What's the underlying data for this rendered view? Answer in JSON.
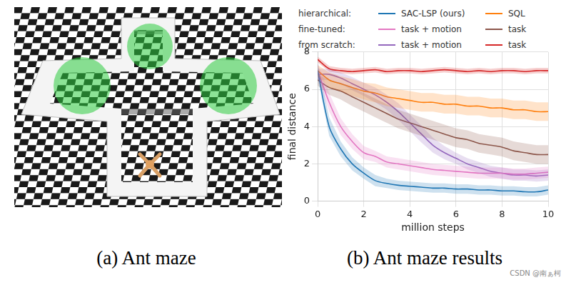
{
  "captions": [
    "(a) Ant maze",
    "(b) Ant maze results"
  ],
  "watermark": "CSDN @南ぁ柯",
  "chart_data": {
    "type": "line",
    "x_label": "million steps",
    "y_label": "final distance",
    "x": [
      0,
      0.5,
      1,
      1.5,
      2,
      2.5,
      3,
      3.5,
      4,
      4.5,
      5,
      5.5,
      6,
      6.5,
      7,
      7.5,
      8,
      8.5,
      9,
      9.5,
      10
    ],
    "xlim": [
      0,
      10
    ],
    "xticks": [
      0,
      2,
      4,
      6,
      8,
      10
    ],
    "ylim": [
      0,
      8
    ],
    "yticks": [
      0,
      2,
      4,
      6,
      8
    ],
    "grid": true,
    "series": [
      {
        "group": "hierarchical:",
        "name": "SAC-LSP (ours)",
        "color": "#1f77b4",
        "values": [
          7.0,
          4.0,
          2.8,
          2.0,
          1.5,
          1.1,
          0.95,
          0.85,
          0.8,
          0.75,
          0.7,
          0.7,
          0.65,
          0.65,
          0.6,
          0.6,
          0.55,
          0.55,
          0.5,
          0.5,
          0.6
        ],
        "error": [
          0.4,
          0.5,
          0.4,
          0.35,
          0.3,
          0.3,
          0.25,
          0.25,
          0.25,
          0.25,
          0.25,
          0.25,
          0.25,
          0.25,
          0.25,
          0.25,
          0.25,
          0.25,
          0.25,
          0.25,
          0.25
        ]
      },
      {
        "group": "hierarchical:",
        "name": "SQL",
        "color": "#ff7f0e",
        "values": [
          7.0,
          6.5,
          6.3,
          6.1,
          5.9,
          5.8,
          5.6,
          5.5,
          5.4,
          5.3,
          5.3,
          5.2,
          5.2,
          5.1,
          5.1,
          5.0,
          5.0,
          4.9,
          4.9,
          4.8,
          4.8
        ],
        "error": [
          0.3,
          0.4,
          0.4,
          0.45,
          0.45,
          0.5,
          0.5,
          0.5,
          0.5,
          0.5,
          0.5,
          0.5,
          0.5,
          0.5,
          0.5,
          0.5,
          0.5,
          0.5,
          0.5,
          0.5,
          0.5
        ]
      },
      {
        "group": "fine-tuned:",
        "name": "task + motion",
        "color": "#e377c2",
        "values": [
          7.0,
          5.3,
          4.0,
          3.2,
          2.6,
          2.4,
          2.1,
          2.0,
          1.9,
          1.8,
          1.7,
          1.65,
          1.6,
          1.55,
          1.5,
          1.5,
          1.5,
          1.45,
          1.45,
          1.5,
          1.55
        ],
        "error": [
          0.4,
          0.5,
          0.45,
          0.4,
          0.35,
          0.3,
          0.3,
          0.3,
          0.3,
          0.3,
          0.3,
          0.3,
          0.3,
          0.3,
          0.3,
          0.3,
          0.3,
          0.3,
          0.3,
          0.3,
          0.3
        ]
      },
      {
        "group": "fine-tuned:",
        "name": "task",
        "color": "#8c564b",
        "values": [
          6.5,
          6.1,
          5.9,
          5.6,
          5.3,
          5.0,
          4.7,
          4.4,
          4.2,
          4.0,
          3.8,
          3.6,
          3.4,
          3.3,
          3.1,
          3.0,
          2.9,
          2.7,
          2.6,
          2.5,
          2.5
        ],
        "error": [
          0.3,
          0.4,
          0.45,
          0.5,
          0.5,
          0.5,
          0.5,
          0.5,
          0.5,
          0.5,
          0.5,
          0.5,
          0.5,
          0.5,
          0.5,
          0.5,
          0.5,
          0.5,
          0.5,
          0.5,
          0.5
        ]
      },
      {
        "group": "from scratch:",
        "name": "task + motion",
        "color": "#9467bd",
        "values": [
          6.8,
          6.8,
          6.6,
          6.3,
          6.0,
          5.7,
          5.3,
          4.8,
          4.2,
          3.6,
          3.0,
          2.6,
          2.3,
          2.0,
          1.8,
          1.6,
          1.5,
          1.4,
          1.4,
          1.35,
          1.4
        ],
        "error": [
          0.3,
          0.3,
          0.3,
          0.35,
          0.35,
          0.4,
          0.4,
          0.45,
          0.45,
          0.45,
          0.4,
          0.35,
          0.3,
          0.3,
          0.3,
          0.3,
          0.3,
          0.3,
          0.3,
          0.3,
          0.3
        ]
      },
      {
        "group": "from scratch:",
        "name": "task",
        "color": "#d62728",
        "values": [
          7.6,
          7.1,
          7.0,
          6.95,
          7.0,
          7.05,
          6.95,
          7.0,
          7.0,
          6.95,
          7.0,
          7.05,
          7.0,
          6.95,
          7.0,
          6.95,
          7.0,
          7.0,
          6.95,
          7.0,
          7.0
        ],
        "error": [
          0.15,
          0.15,
          0.15,
          0.15,
          0.15,
          0.15,
          0.15,
          0.15,
          0.15,
          0.15,
          0.15,
          0.15,
          0.15,
          0.15,
          0.15,
          0.15,
          0.15,
          0.15,
          0.15,
          0.15,
          0.15
        ]
      }
    ]
  }
}
